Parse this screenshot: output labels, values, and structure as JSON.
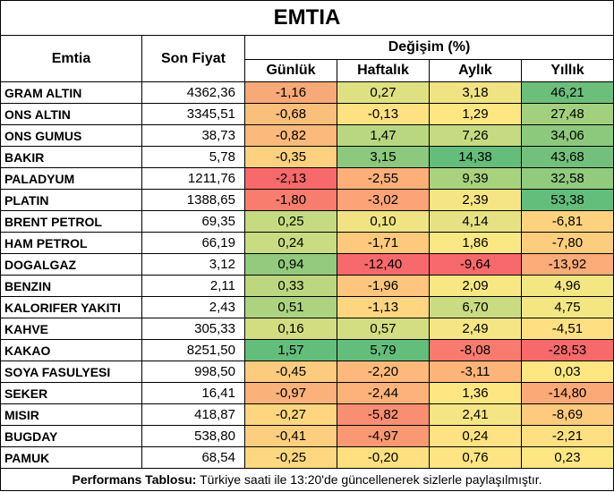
{
  "title": "EMTIA",
  "headers": {
    "commodity": "Emtia",
    "price": "Son Fiyat",
    "change_group": "Değişim (%)",
    "daily": "Günlük",
    "weekly": "Haftalık",
    "monthly": "Aylık",
    "yearly": "Yıllık"
  },
  "rows": [
    {
      "name": "GRAM ALTIN",
      "price": "4362,36",
      "daily": "-1,16",
      "weekly": "0,27",
      "monthly": "3,18",
      "yearly": "46,21",
      "colors": {
        "daily": "#f8a978",
        "weekly": "#dfe082",
        "monthly": "#f0e384",
        "yearly": "#6cbf7b"
      }
    },
    {
      "name": "ONS ALTIN",
      "price": "3345,51",
      "daily": "-0,68",
      "weekly": "-0,13",
      "monthly": "1,29",
      "yearly": "27,48",
      "colors": {
        "daily": "#fbbf7c",
        "weekly": "#fee182",
        "monthly": "#fee683",
        "yearly": "#a2d07f"
      }
    },
    {
      "name": "ONS GUMUS",
      "price": "38,73",
      "daily": "-0,82",
      "weekly": "1,47",
      "monthly": "7,26",
      "yearly": "34,06",
      "colors": {
        "daily": "#fbb97b",
        "weekly": "#b8d780",
        "monthly": "#c5da81",
        "yearly": "#8dc97d"
      }
    },
    {
      "name": "BAKIR",
      "price": "5,78",
      "daily": "-0,35",
      "weekly": "3,15",
      "monthly": "14,38",
      "yearly": "43,68",
      "colors": {
        "daily": "#fdd17f",
        "weekly": "#8cc87d",
        "monthly": "#64bd7b",
        "yearly": "#73c07c"
      }
    },
    {
      "name": "PALADYUM",
      "price": "1211,76",
      "daily": "-2,13",
      "weekly": "-2,55",
      "monthly": "9,39",
      "yearly": "32,58",
      "colors": {
        "daily": "#f8696b",
        "weekly": "#fcaf79",
        "monthly": "#a9d27f",
        "yearly": "#92ca7e"
      }
    },
    {
      "name": "PLATIN",
      "price": "1388,65",
      "daily": "-1,80",
      "weekly": "-3,02",
      "monthly": "2,39",
      "yearly": "53,38",
      "colors": {
        "daily": "#f97d6e",
        "weekly": "#fca477",
        "monthly": "#f6e584",
        "yearly": "#63be7b"
      }
    },
    {
      "name": "BRENT PETROL",
      "price": "69,35",
      "daily": "0,25",
      "weekly": "0,10",
      "monthly": "4,14",
      "yearly": "-6,81",
      "colors": {
        "daily": "#c6db81",
        "weekly": "#f0e384",
        "monthly": "#e6e283",
        "yearly": "#fdd27f"
      }
    },
    {
      "name": "HAM PETROL",
      "price": "66,19",
      "daily": "0,24",
      "weekly": "-1,71",
      "monthly": "1,86",
      "yearly": "-7,80",
      "colors": {
        "daily": "#c9dc81",
        "weekly": "#fdc97d",
        "monthly": "#fae884",
        "yearly": "#fdcd7e"
      }
    },
    {
      "name": "DOGALGAZ",
      "price": "3,12",
      "daily": "0,94",
      "weekly": "-12,40",
      "monthly": "-9,64",
      "yearly": "-13,92",
      "colors": {
        "daily": "#93ca7e",
        "weekly": "#f8696b",
        "monthly": "#f8696b",
        "yearly": "#fcac78"
      }
    },
    {
      "name": "BENZIN",
      "price": "2,11",
      "daily": "0,33",
      "weekly": "-1,96",
      "monthly": "2,09",
      "yearly": "4,96",
      "colors": {
        "daily": "#bcd780",
        "weekly": "#fdc57d",
        "monthly": "#f8e884",
        "yearly": "#f3e683"
      }
    },
    {
      "name": "KALORIFER YAKITI",
      "price": "2,43",
      "daily": "0,51",
      "weekly": "-1,13",
      "monthly": "6,70",
      "yearly": "4,75",
      "colors": {
        "daily": "#add380",
        "weekly": "#fed580",
        "monthly": "#cbdb81",
        "yearly": "#f3e683"
      }
    },
    {
      "name": "KAHVE",
      "price": "305,33",
      "daily": "0,16",
      "weekly": "0,57",
      "monthly": "2,49",
      "yearly": "-4,51",
      "colors": {
        "daily": "#d2dd82",
        "weekly": "#d3de82",
        "monthly": "#f5e584",
        "yearly": "#fee082"
      }
    },
    {
      "name": "KAKAO",
      "price": "8251,50",
      "daily": "1,57",
      "weekly": "5,79",
      "monthly": "-8,08",
      "yearly": "-28,53",
      "colors": {
        "daily": "#63be7b",
        "weekly": "#63be7b",
        "monthly": "#f97a6e",
        "yearly": "#f8696b"
      }
    },
    {
      "name": "SOYA FASULYESI",
      "price": "998,50",
      "daily": "-0,45",
      "weekly": "-2,20",
      "monthly": "-3,11",
      "yearly": "0,03",
      "colors": {
        "daily": "#fdcb7e",
        "weekly": "#fcb97b",
        "monthly": "#fcb479",
        "yearly": "#fee783"
      }
    },
    {
      "name": "SEKER",
      "price": "16,41",
      "daily": "-0,97",
      "weekly": "-2,44",
      "monthly": "1,36",
      "yearly": "-14,80",
      "colors": {
        "daily": "#fab17a",
        "weekly": "#fcb279",
        "monthly": "#fee683",
        "yearly": "#fba977"
      }
    },
    {
      "name": "MISIR",
      "price": "418,87",
      "daily": "-0,27",
      "weekly": "-5,82",
      "monthly": "2,41",
      "yearly": "-8,69",
      "colors": {
        "daily": "#fed680",
        "weekly": "#fa8e72",
        "monthly": "#f6e584",
        "yearly": "#fdca7e"
      }
    },
    {
      "name": "BUGDAY",
      "price": "538,80",
      "daily": "-0,41",
      "weekly": "-4,97",
      "monthly": "0,24",
      "yearly": "-2,21",
      "colors": {
        "daily": "#fdce7f",
        "weekly": "#fb9874",
        "monthly": "#fee283",
        "yearly": "#fee082"
      }
    },
    {
      "name": "PAMUK",
      "price": "68,54",
      "daily": "-0,25",
      "weekly": "-0,20",
      "monthly": "0,76",
      "yearly": "0,23",
      "colors": {
        "daily": "#fed880",
        "weekly": "#fee081",
        "monthly": "#fee483",
        "yearly": "#fee783"
      }
    }
  ],
  "footer": {
    "label": "Performans Tablosu:",
    "text": " Türkiye saati ile 13:20'de güncellenerek sizlerle paylaşılmıştır."
  }
}
